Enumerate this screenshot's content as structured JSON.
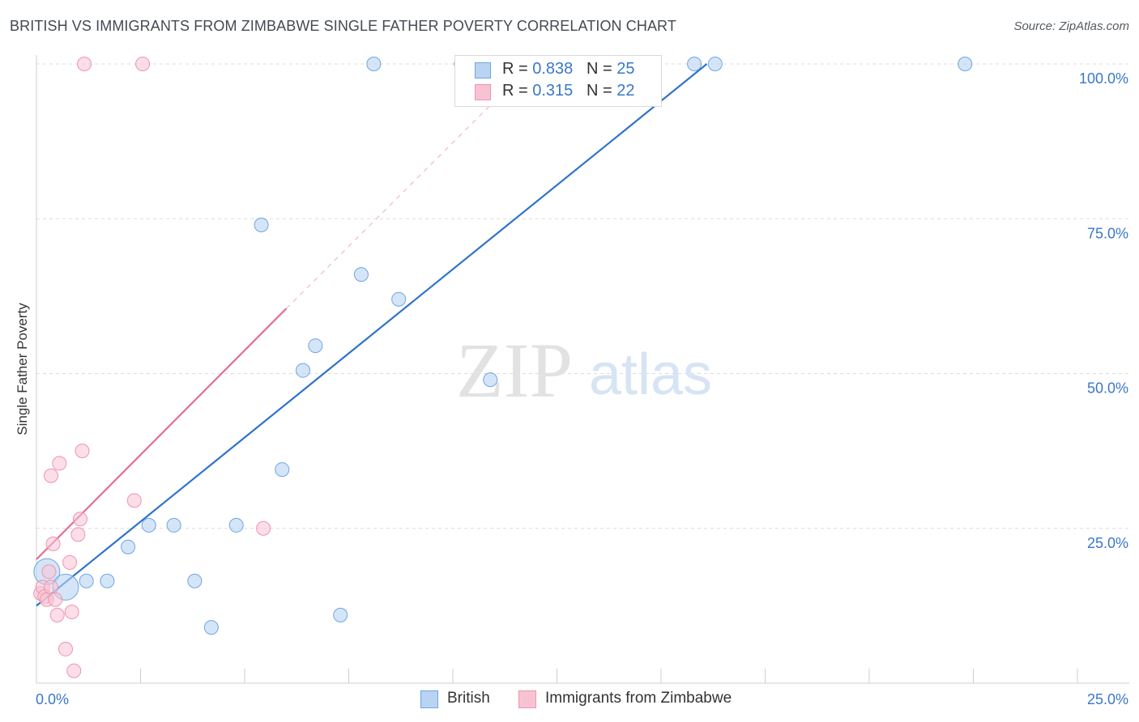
{
  "title": "BRITISH VS IMMIGRANTS FROM ZIMBABWE SINGLE FATHER POVERTY CORRELATION CHART",
  "source": "Source: ZipAtlas.com",
  "watermark": {
    "zip": "ZIP",
    "atlas": "atlas"
  },
  "colors": {
    "british": "#6ea5e3",
    "british_fill": "#b9d3f3",
    "british_line": "#2f73cc",
    "zimbabwe": "#ee94b0",
    "zimbabwe_fill": "#f7c3d3",
    "zimbabwe_line": "#e56d96",
    "tick_label": "#3a78c9",
    "grid": "#dcdcdc"
  },
  "legend": {
    "rows": [
      {
        "r_label": "R = ",
        "r_value": "0.838",
        "n_label": "N = ",
        "n_value": "25"
      },
      {
        "r_label": "R = ",
        "r_value": "0.315",
        "n_label": "N = ",
        "n_value": "22"
      }
    ]
  },
  "chart_data": {
    "type": "scatter",
    "title": "BRITISH VS IMMIGRANTS FROM ZIMBABWE SINGLE FATHER POVERTY CORRELATION CHART",
    "xlabel": "",
    "ylabel": "Single Father Poverty",
    "xlim": [
      0,
      25
    ],
    "ylim": [
      0,
      100
    ],
    "x_tick_labels": [
      "0.0%",
      "25.0%"
    ],
    "y_ticks": [
      25,
      50,
      75,
      100
    ],
    "y_tick_labels": [
      "25.0%",
      "50.0%",
      "75.0%",
      "100.0%"
    ],
    "grid": true,
    "legend_position": "top-center",
    "series": [
      {
        "name": "British",
        "r": 0.838,
        "n": 25,
        "trend": {
          "x": [
            0,
            16.1
          ],
          "y": [
            12.5,
            100
          ]
        },
        "points": [
          {
            "x": 0.25,
            "y": 18.0,
            "big": true
          },
          {
            "x": 0.7,
            "y": 15.5,
            "big": true
          },
          {
            "x": 1.2,
            "y": 16.5
          },
          {
            "x": 1.7,
            "y": 16.5
          },
          {
            "x": 2.2,
            "y": 22.0
          },
          {
            "x": 2.7,
            "y": 25.5
          },
          {
            "x": 3.3,
            "y": 25.5
          },
          {
            "x": 3.8,
            "y": 16.5
          },
          {
            "x": 4.2,
            "y": 9.0
          },
          {
            "x": 4.8,
            "y": 25.5
          },
          {
            "x": 5.4,
            "y": 74.0
          },
          {
            "x": 5.9,
            "y": 34.5
          },
          {
            "x": 6.4,
            "y": 50.5
          },
          {
            "x": 6.7,
            "y": 54.5
          },
          {
            "x": 7.3,
            "y": 11.0
          },
          {
            "x": 7.8,
            "y": 66.0
          },
          {
            "x": 8.1,
            "y": 100.0
          },
          {
            "x": 8.7,
            "y": 62.0
          },
          {
            "x": 10.2,
            "y": 100.0
          },
          {
            "x": 10.9,
            "y": 49.0
          },
          {
            "x": 12.6,
            "y": 100.0
          },
          {
            "x": 14.3,
            "y": 100.0
          },
          {
            "x": 15.8,
            "y": 100.0
          },
          {
            "x": 16.3,
            "y": 100.0
          },
          {
            "x": 22.3,
            "y": 100.0
          }
        ]
      },
      {
        "name": "Immigrants from Zimbabwe",
        "r": 0.315,
        "n": 22,
        "trend": {
          "x": [
            0,
            6.0
          ],
          "y": [
            20.0,
            60.5
          ]
        },
        "trend_extension": {
          "x": [
            6.0,
            11.0
          ],
          "y": [
            60.5,
            94.0
          ]
        },
        "points": [
          {
            "x": 0.1,
            "y": 14.5
          },
          {
            "x": 0.15,
            "y": 15.5
          },
          {
            "x": 0.2,
            "y": 14.0
          },
          {
            "x": 0.25,
            "y": 13.5
          },
          {
            "x": 0.3,
            "y": 18.0
          },
          {
            "x": 0.35,
            "y": 15.5
          },
          {
            "x": 0.35,
            "y": 33.5
          },
          {
            "x": 0.4,
            "y": 22.5
          },
          {
            "x": 0.45,
            "y": 13.5
          },
          {
            "x": 0.5,
            "y": 11.0
          },
          {
            "x": 0.55,
            "y": 35.5
          },
          {
            "x": 0.7,
            "y": 5.5
          },
          {
            "x": 0.8,
            "y": 19.5
          },
          {
            "x": 0.85,
            "y": 11.5
          },
          {
            "x": 0.9,
            "y": 2.0
          },
          {
            "x": 1.0,
            "y": 24.0
          },
          {
            "x": 1.05,
            "y": 26.5
          },
          {
            "x": 1.1,
            "y": 37.5
          },
          {
            "x": 1.15,
            "y": 100.0
          },
          {
            "x": 2.35,
            "y": 29.5
          },
          {
            "x": 2.55,
            "y": 100.0
          },
          {
            "x": 5.45,
            "y": 25.0
          }
        ]
      }
    ]
  }
}
